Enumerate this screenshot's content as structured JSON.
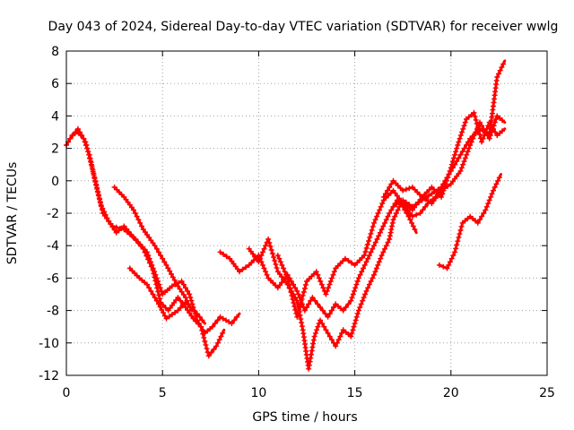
{
  "chart_data": {
    "type": "scatter",
    "title": "Day 043 of 2024, Sidereal Day-to-day VTEC variation (SDTVAR) for receiver wwlg",
    "xlabel": "GPS time / hours",
    "ylabel": "SDTVAR / TECUs",
    "xlim": [
      0,
      25
    ],
    "ylim": [
      -12,
      8
    ],
    "xticks": [
      "0",
      "5",
      "10",
      "15",
      "20",
      "25"
    ],
    "yticks": [
      "-12",
      "-10",
      "-8",
      "-6",
      "-4",
      "-2",
      "0",
      "2",
      "4",
      "6",
      "8"
    ],
    "grid": true,
    "marker_color": "#ff0000",
    "series": [
      {
        "values": [
          [
            0,
            2.2
          ],
          [
            0.3,
            2.8
          ],
          [
            0.6,
            3.0
          ],
          [
            0.9,
            2.6
          ],
          [
            1.2,
            1.6
          ],
          [
            1.5,
            0
          ],
          [
            1.8,
            -1.5
          ],
          [
            2.2,
            -2.5
          ],
          [
            2.6,
            -3.2
          ],
          [
            3.0,
            -2.8
          ],
          [
            3.5,
            -3.5
          ],
          [
            4.0,
            -4.2
          ],
          [
            4.5,
            -5.5
          ],
          [
            4.9,
            -7.5
          ],
          [
            5.3,
            -8.0
          ],
          [
            5.8,
            -7.2
          ],
          [
            6.2,
            -7.8
          ],
          [
            6.6,
            -8.5
          ],
          [
            7.0,
            -9.0
          ],
          [
            7.4,
            -10.8
          ],
          [
            7.8,
            -10.2
          ],
          [
            8.2,
            -9.2
          ]
        ]
      },
      {
        "values": [
          [
            0.2,
            2.6
          ],
          [
            0.6,
            3.2
          ],
          [
            1.0,
            2.4
          ],
          [
            1.3,
            1.0
          ],
          [
            1.6,
            -0.5
          ],
          [
            1.9,
            -2.0
          ],
          [
            2.4,
            -2.8
          ],
          [
            3.0,
            -3.0
          ],
          [
            3.6,
            -3.6
          ],
          [
            4.2,
            -4.4
          ],
          [
            4.7,
            -6.0
          ],
          [
            5.0,
            -7.0
          ],
          [
            5.5,
            -6.5
          ],
          [
            6.0,
            -6.2
          ],
          [
            6.4,
            -7.0
          ],
          [
            6.8,
            -8.6
          ],
          [
            7.2,
            -9.4
          ],
          [
            7.6,
            -9.0
          ],
          [
            8.0,
            -8.4
          ],
          [
            8.6,
            -8.8
          ],
          [
            9.0,
            -8.2
          ]
        ]
      },
      {
        "values": [
          [
            2.5,
            -0.4
          ],
          [
            3.0,
            -1.0
          ],
          [
            3.5,
            -1.8
          ],
          [
            4.0,
            -3.0
          ],
          [
            4.6,
            -4.0
          ],
          [
            5.2,
            -5.2
          ],
          [
            5.8,
            -6.5
          ],
          [
            6.2,
            -7.2
          ],
          [
            6.5,
            -8.0
          ]
        ]
      },
      {
        "values": [
          [
            3.3,
            -5.4
          ],
          [
            3.8,
            -6.0
          ],
          [
            4.2,
            -6.4
          ],
          [
            4.8,
            -7.6
          ],
          [
            5.2,
            -8.5
          ],
          [
            5.8,
            -8.0
          ],
          [
            6.2,
            -7.5
          ],
          [
            6.8,
            -8.2
          ],
          [
            7.2,
            -8.8
          ]
        ]
      },
      {
        "values": [
          [
            8.0,
            -4.4
          ],
          [
            8.5,
            -4.8
          ],
          [
            9.0,
            -5.6
          ],
          [
            9.5,
            -5.2
          ],
          [
            10.0,
            -4.6
          ],
          [
            10.5,
            -6.0
          ],
          [
            11.0,
            -6.6
          ],
          [
            11.5,
            -5.8
          ],
          [
            12.0,
            -6.8
          ],
          [
            12.4,
            -8.0
          ],
          [
            12.8,
            -7.2
          ],
          [
            13.2,
            -7.8
          ],
          [
            13.6,
            -8.4
          ],
          [
            14.0,
            -7.6
          ],
          [
            14.4,
            -8.0
          ],
          [
            14.8,
            -7.4
          ],
          [
            15.2,
            -6.0
          ],
          [
            15.6,
            -5.0
          ],
          [
            16.0,
            -4.0
          ],
          [
            16.4,
            -3.0
          ],
          [
            16.8,
            -2.0
          ],
          [
            17.2,
            -1.2
          ],
          [
            17.6,
            -1.6
          ],
          [
            18.0,
            -2.2
          ],
          [
            18.4,
            -2.0
          ],
          [
            18.8,
            -1.4
          ],
          [
            19.2,
            -1.0
          ],
          [
            19.6,
            -0.8
          ]
        ]
      },
      {
        "values": [
          [
            9.5,
            -4.2
          ],
          [
            10.0,
            -5.0
          ],
          [
            10.5,
            -3.6
          ],
          [
            11.0,
            -5.6
          ],
          [
            11.5,
            -6.4
          ],
          [
            12.0,
            -7.4
          ],
          [
            12.3,
            -9.2
          ],
          [
            12.6,
            -11.6
          ],
          [
            12.9,
            -9.6
          ],
          [
            13.2,
            -8.6
          ],
          [
            13.6,
            -9.4
          ],
          [
            14.0,
            -10.2
          ],
          [
            14.4,
            -9.2
          ],
          [
            14.8,
            -9.6
          ],
          [
            15.2,
            -8.0
          ],
          [
            15.6,
            -6.8
          ],
          [
            16.0,
            -5.8
          ],
          [
            16.4,
            -4.6
          ],
          [
            16.8,
            -3.6
          ],
          [
            17.0,
            -2.4
          ],
          [
            17.4,
            -1.4
          ],
          [
            17.8,
            -2.2
          ],
          [
            18.2,
            -3.2
          ]
        ]
      },
      {
        "values": [
          [
            11.0,
            -4.6
          ],
          [
            11.5,
            -6.0
          ],
          [
            12.0,
            -8.4
          ],
          [
            12.5,
            -6.2
          ],
          [
            13.0,
            -5.6
          ],
          [
            13.5,
            -7.0
          ],
          [
            14.0,
            -5.4
          ],
          [
            14.5,
            -4.8
          ],
          [
            15.0,
            -5.2
          ],
          [
            15.5,
            -4.6
          ],
          [
            16.0,
            -2.6
          ],
          [
            16.5,
            -1.2
          ],
          [
            17.0,
            -0.6
          ],
          [
            17.5,
            -1.4
          ],
          [
            18.0,
            -1.8
          ],
          [
            18.5,
            -1.0
          ],
          [
            19.0,
            -1.4
          ],
          [
            19.5,
            -0.6
          ],
          [
            20.0,
            -0.2
          ],
          [
            20.5,
            0.6
          ],
          [
            21.0,
            2.2
          ],
          [
            21.5,
            3.6
          ],
          [
            22.0,
            2.6
          ],
          [
            22.4,
            4.0
          ],
          [
            22.8,
            3.6
          ]
        ]
      },
      {
        "values": [
          [
            16.5,
            -1.0
          ],
          [
            17.0,
            0
          ],
          [
            17.5,
            -0.6
          ],
          [
            18.0,
            -0.4
          ],
          [
            18.5,
            -1.0
          ],
          [
            19.0,
            -0.4
          ],
          [
            19.5,
            -1.0
          ],
          [
            20.0,
            0.8
          ],
          [
            20.4,
            2.4
          ],
          [
            20.8,
            3.8
          ],
          [
            21.2,
            4.2
          ],
          [
            21.6,
            2.4
          ],
          [
            22.0,
            3.6
          ],
          [
            22.4,
            2.8
          ],
          [
            22.8,
            3.2
          ]
        ]
      },
      {
        "values": [
          [
            17.0,
            -1.6
          ],
          [
            17.5,
            -1.2
          ],
          [
            18.0,
            -1.6
          ],
          [
            18.5,
            -1.2
          ],
          [
            19.0,
            -0.8
          ],
          [
            19.5,
            -0.4
          ],
          [
            20.0,
            0.6
          ],
          [
            20.5,
            1.6
          ],
          [
            21.0,
            2.6
          ],
          [
            21.5,
            3.2
          ],
          [
            22.0,
            2.8
          ],
          [
            22.4,
            6.4
          ],
          [
            22.8,
            7.4
          ]
        ]
      },
      {
        "values": [
          [
            19.4,
            -5.2
          ],
          [
            19.8,
            -5.4
          ],
          [
            20.2,
            -4.4
          ],
          [
            20.6,
            -2.6
          ],
          [
            21.0,
            -2.2
          ],
          [
            21.4,
            -2.6
          ],
          [
            21.8,
            -1.8
          ],
          [
            22.2,
            -0.6
          ],
          [
            22.6,
            0.4
          ]
        ]
      }
    ]
  }
}
